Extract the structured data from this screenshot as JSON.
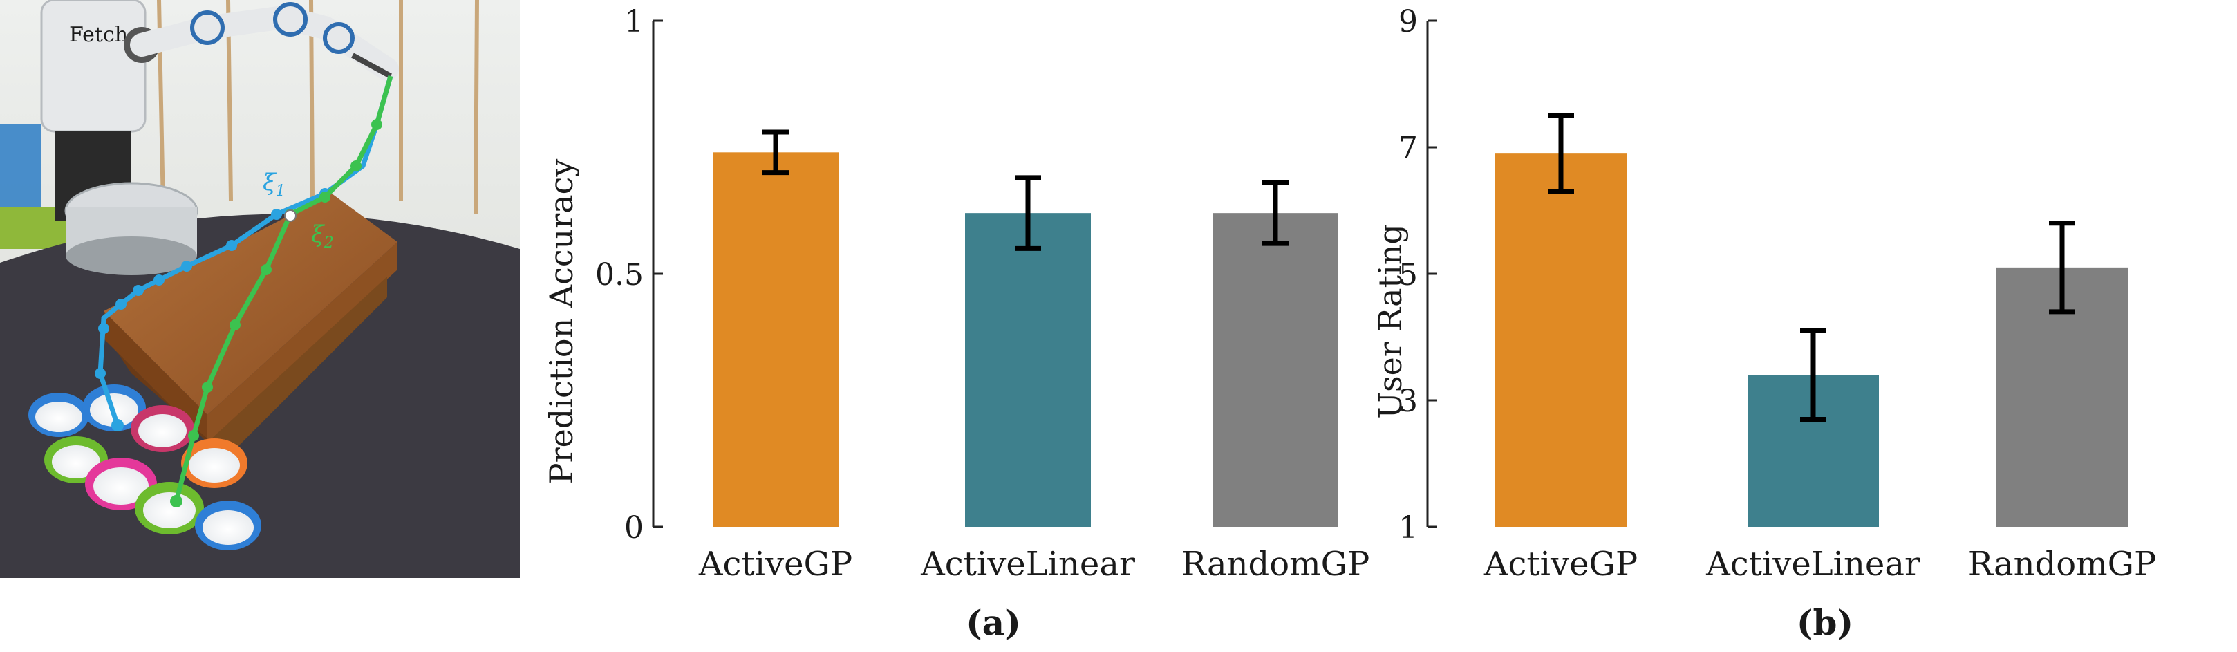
{
  "photo": {
    "robot_logo": "Fetch",
    "xi1_label": "ξ",
    "xi1_sub": "1",
    "xi2_label": "ξ",
    "xi2_sub": "2",
    "colors": {
      "traj_blue": "#2aa3e0",
      "traj_green": "#3cc24f",
      "table": "#9a5a2a",
      "floor": "#3c3a42"
    }
  },
  "chart_data": [
    {
      "type": "bar",
      "caption": "(a)",
      "categories": [
        "ActiveGP",
        "ActiveLinear",
        "RandomGP"
      ],
      "values": [
        0.74,
        0.62,
        0.62
      ],
      "error_low": [
        0.7,
        0.55,
        0.56
      ],
      "error_high": [
        0.78,
        0.69,
        0.68
      ],
      "colors": [
        "#e08a24",
        "#3e808d",
        "#808080"
      ],
      "xlabel": "",
      "ylabel": "Prediction Accuracy",
      "ylim": [
        0,
        1
      ],
      "yticks": [
        0,
        0.5,
        1
      ],
      "ytick_labels": [
        "0",
        "0.5",
        "1"
      ]
    },
    {
      "type": "bar",
      "caption": "(b)",
      "categories": [
        "ActiveGP",
        "ActiveLinear",
        "RandomGP"
      ],
      "values": [
        6.9,
        3.4,
        5.1
      ],
      "error_low": [
        6.3,
        2.7,
        4.4
      ],
      "error_high": [
        7.5,
        4.1,
        5.8
      ],
      "colors": [
        "#e08a24",
        "#3e808d",
        "#808080"
      ],
      "xlabel": "",
      "ylabel": "User Rating",
      "ylim": [
        1,
        9
      ],
      "yticks": [
        1,
        3,
        5,
        7,
        9
      ],
      "ytick_labels": [
        "1",
        "3",
        "5",
        "7",
        "9"
      ]
    }
  ]
}
